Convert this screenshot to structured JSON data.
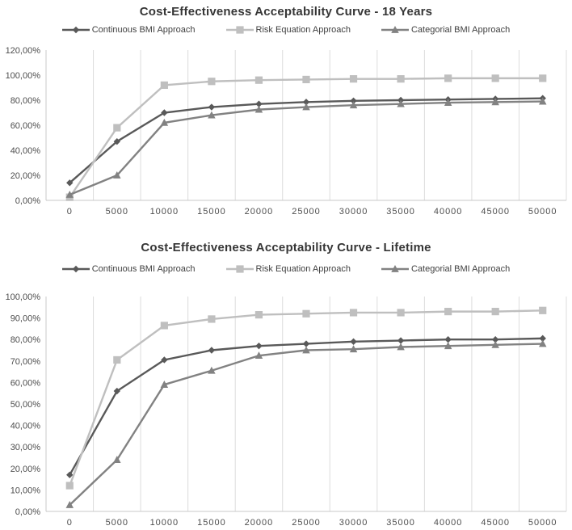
{
  "style": {
    "grid_color": "#dcdcdc",
    "axis_color": "#c8c8c8",
    "tick_text_color": "#4d4d4d",
    "title_color": "#363636",
    "background": "#ffffff"
  },
  "chart_data": [
    {
      "type": "line",
      "title": "Cost-Effectiveness Acceptability Curve - 18 Years",
      "x": [
        0,
        5000,
        10000,
        15000,
        20000,
        25000,
        30000,
        35000,
        40000,
        45000,
        50000
      ],
      "x_tick_labels": [
        "0",
        "5000",
        "10000",
        "15000",
        "20000",
        "25000",
        "30000",
        "35000",
        "40000",
        "45000",
        "50000"
      ],
      "xlabel": "",
      "ylabel": "",
      "ylim": [
        0,
        120
      ],
      "y_step": 20,
      "y_tick_labels": [
        "0,00%",
        "20,00%",
        "40,00%",
        "60,00%",
        "80,00%",
        "100,00%",
        "120,00%"
      ],
      "grid": "vertical-only",
      "legend_position": "top",
      "series": [
        {
          "name": "Continuous BMI Approach",
          "marker": "diamond",
          "color": "#595959",
          "values": [
            14,
            47,
            70,
            74.5,
            77,
            78.5,
            79.5,
            80,
            80.5,
            81,
            81.5
          ]
        },
        {
          "name": "Risk Equation Approach",
          "marker": "square",
          "color": "#bfbfbf",
          "values": [
            2.5,
            58,
            92,
            95,
            96,
            96.5,
            97,
            97,
            97.5,
            97.5,
            97.5
          ]
        },
        {
          "name": "Categorial BMI Approach",
          "marker": "triangle",
          "color": "#828282",
          "values": [
            4.5,
            20,
            62,
            68,
            72.5,
            74.5,
            76,
            77,
            78,
            78.5,
            79
          ]
        }
      ]
    },
    {
      "type": "line",
      "title": "Cost-Effectiveness Acceptability Curve - Lifetime",
      "x": [
        0,
        5000,
        10000,
        15000,
        20000,
        25000,
        30000,
        35000,
        40000,
        45000,
        50000
      ],
      "x_tick_labels": [
        "0",
        "5000",
        "10000",
        "15000",
        "20000",
        "25000",
        "30000",
        "35000",
        "40000",
        "45000",
        "50000"
      ],
      "xlabel": "",
      "ylabel": "",
      "ylim": [
        0,
        100
      ],
      "y_step": 10,
      "y_tick_labels": [
        "0,00%",
        "10,00%",
        "20,00%",
        "30,00%",
        "40,00%",
        "50,00%",
        "60,00%",
        "70,00%",
        "80,00%",
        "90,00%",
        "100,00%"
      ],
      "grid": "vertical-only",
      "legend_position": "top",
      "series": [
        {
          "name": "Continuous BMI Approach",
          "marker": "diamond",
          "color": "#595959",
          "values": [
            17,
            56,
            70.5,
            75,
            77,
            78,
            79,
            79.5,
            80,
            80,
            80.5
          ]
        },
        {
          "name": "Risk Equation Approach",
          "marker": "square",
          "color": "#bfbfbf",
          "values": [
            12,
            70.5,
            86.5,
            89.5,
            91.5,
            92,
            92.5,
            92.5,
            93,
            93,
            93.5
          ]
        },
        {
          "name": "Categorial BMI Approach",
          "marker": "triangle",
          "color": "#828282",
          "values": [
            3,
            24,
            59,
            65.5,
            72.5,
            75,
            75.5,
            76.5,
            77,
            77.5,
            78
          ]
        }
      ]
    }
  ]
}
